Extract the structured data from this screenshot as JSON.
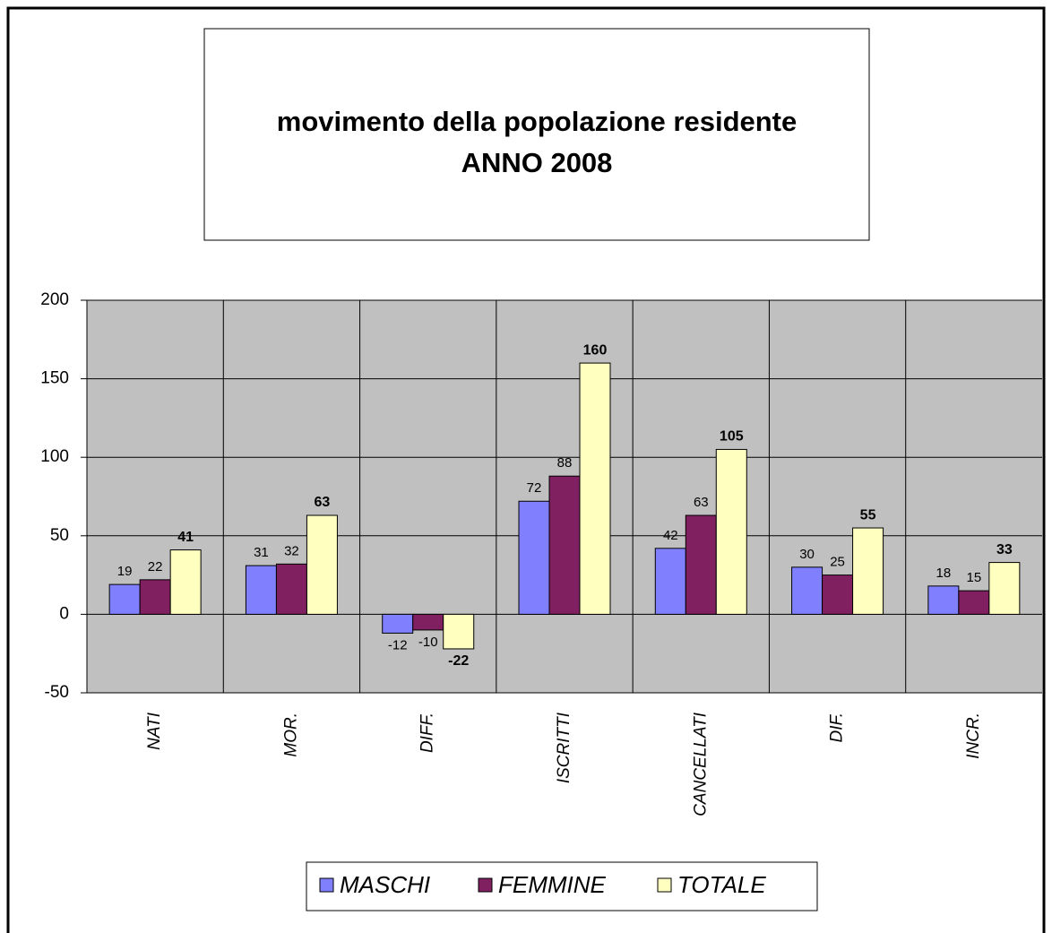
{
  "chart_data": {
    "type": "bar",
    "title": "movimento della popolazione residente",
    "subtitle": "ANNO 2008",
    "categories": [
      "NATI",
      "MOR.",
      "DIFF.",
      "ISCRITTI",
      "CANCELLATI",
      "DIF.",
      "INCR."
    ],
    "series": [
      {
        "name": "MASCHI",
        "color": "#8080ff",
        "values": [
          19,
          31,
          -12,
          72,
          42,
          30,
          18
        ]
      },
      {
        "name": "FEMMINE",
        "color": "#802060",
        "values": [
          22,
          32,
          -10,
          88,
          63,
          25,
          15
        ]
      },
      {
        "name": "TOTALE",
        "color": "#ffffc0",
        "values": [
          41,
          63,
          -22,
          160,
          105,
          55,
          33
        ]
      }
    ],
    "ylim": [
      -50,
      200
    ],
    "yticks": [
      -50,
      0,
      50,
      100,
      150,
      200
    ],
    "grid": true,
    "legend": "bottom"
  }
}
